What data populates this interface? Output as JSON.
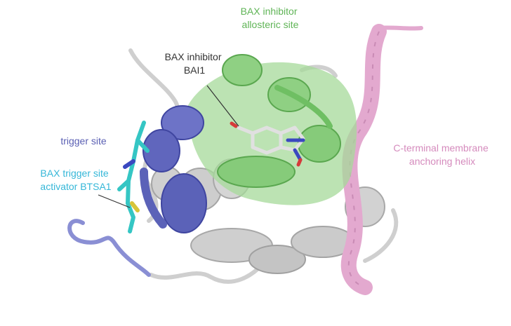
{
  "labels": {
    "allosteric_line1": "BAX inhibitor",
    "allosteric_line2": "allosteric site",
    "bai1_line1": "BAX inhibitor",
    "bai1_line2": "BAI1",
    "trigger_site": "trigger site",
    "btsa1_line1": "BAX trigger site",
    "btsa1_line2": "activator BTSA1",
    "cterm_line1": "C-terminal membrane",
    "cterm_line2": "anchoring helix"
  },
  "colors": {
    "green_label": "#5fb456",
    "green_surface": "#a6d99a",
    "green_helix": "#6fbf63",
    "pink_label": "#d58bbd",
    "pink_helix": "#e3a9cf",
    "blue_label": "#5a5fb3",
    "blue_helix": "#5b62b8",
    "cyan_label": "#35b7d8",
    "cyan_ligand": "#35c6c4",
    "gray_helix": "#c7c7c7",
    "dark_label": "#333333"
  }
}
